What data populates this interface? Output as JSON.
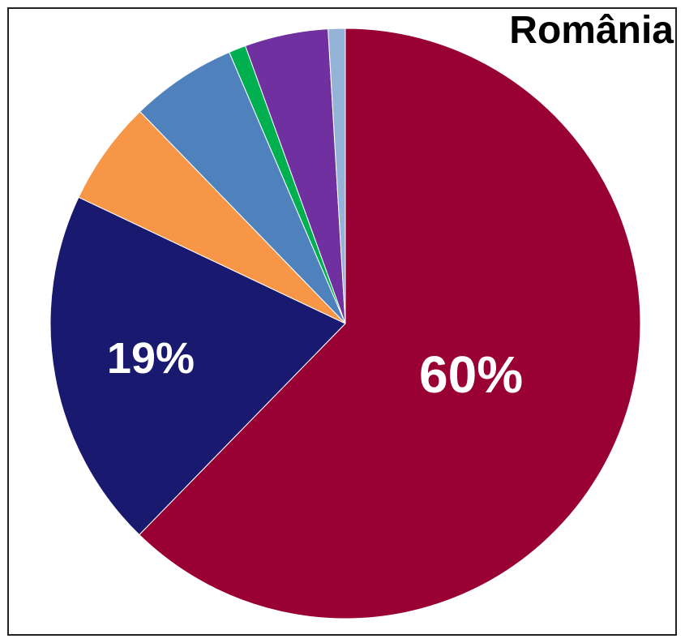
{
  "chart_data": {
    "type": "pie",
    "title": "România",
    "start_angle_deg": 0,
    "direction": "clockwise",
    "slices": [
      {
        "value": 60.0,
        "color": "#990033",
        "label": "60%"
      },
      {
        "value": 19.0,
        "color": "#191970",
        "label": "19%"
      },
      {
        "value": 5.5,
        "color": "#F79646",
        "label": ""
      },
      {
        "value": 5.6,
        "color": "#4F81BD",
        "label": ""
      },
      {
        "value": 0.9,
        "color": "#00B050",
        "label": ""
      },
      {
        "value": 4.4,
        "color": "#7030A0",
        "label": ""
      },
      {
        "value": 0.9,
        "color": "#95B3D7",
        "label": ""
      }
    ]
  }
}
